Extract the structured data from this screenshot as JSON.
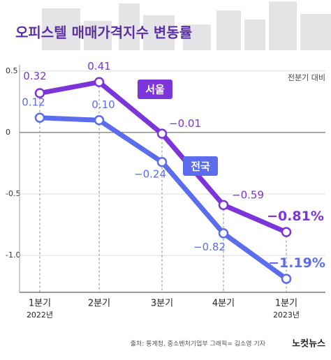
{
  "chart_data": {
    "type": "line",
    "title": "오피스텔 매매가격지수 변동률",
    "subtitle": "전분기 대비",
    "categories": [
      "1분기",
      "2분기",
      "3분기",
      "4분기",
      "1분기"
    ],
    "x_sublabels": [
      "2022년",
      null,
      null,
      null,
      "2023년"
    ],
    "series": [
      {
        "name": "서울",
        "color": "#7b35d8",
        "values": [
          0.32,
          0.41,
          -0.01,
          -0.59,
          -0.81
        ],
        "value_labels": [
          "0.32",
          "0.41",
          "−0.01",
          "−0.59",
          "−0.81%"
        ]
      },
      {
        "name": "전국",
        "color": "#5b6cec",
        "values": [
          0.12,
          0.1,
          -0.24,
          -0.82,
          -1.19
        ],
        "value_labels": [
          "0.12",
          "0.10",
          "−0.24",
          "−0.82",
          "−1.19%"
        ]
      }
    ],
    "ylim": [
      -1.3,
      0.55
    ],
    "yticks": [
      0.5,
      0,
      -0.5,
      {
        "value": -1.0,
        "label": "-1.0"
      }
    ],
    "source": "출처: 통계청, 중소벤처기업부   그래픽= 김소영 기자",
    "logo": "노컷뉴스"
  }
}
